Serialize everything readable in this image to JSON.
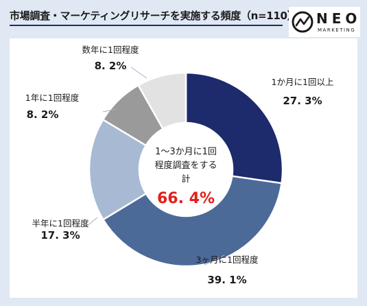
{
  "header": {
    "title": "市場調査・マーケティングリサーチを実施する頻度（n=110）"
  },
  "logo": {
    "word": "NEO",
    "sub": "MARKETING"
  },
  "chart_data": {
    "type": "pie",
    "title": "市場調査・マーケティングリサーチを実施する頻度（n=110）",
    "slices": [
      {
        "label": "1か月に1回以上",
        "value": 27.3,
        "display": "27. 3%",
        "color": "#1d2a6b"
      },
      {
        "label": "3ヶ月に1回程度",
        "value": 39.1,
        "display": "39. 1%",
        "color": "#4c6a98"
      },
      {
        "label": "半年に1回程度",
        "value": 17.3,
        "display": "17. 3%",
        "color": "#a8bad3"
      },
      {
        "label": "1年に1回程度",
        "value": 8.2,
        "display": "8. 2%",
        "color": "#9a9a9a"
      },
      {
        "label": "数年に1回程度",
        "value": 8.2,
        "display": "8. 2%",
        "color": "#e2e2e2"
      }
    ],
    "center": {
      "line1": "1～3か月に1回",
      "line2": "程度調査をする",
      "line3": "計",
      "value": "66. 4%",
      "value_color": "#e0201b"
    }
  }
}
